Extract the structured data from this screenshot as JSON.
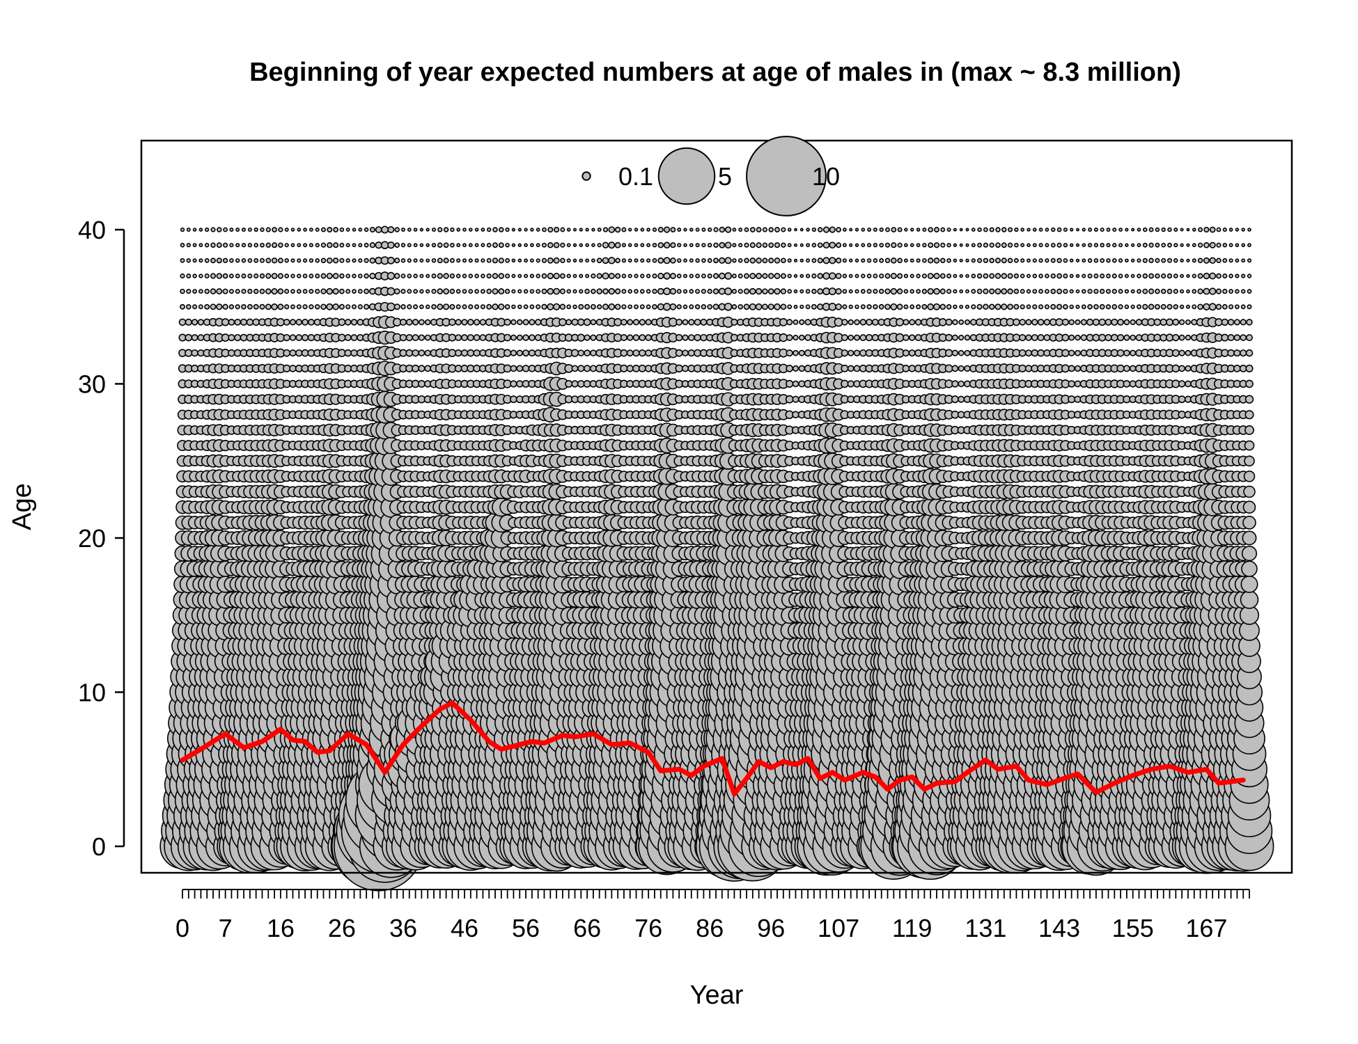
{
  "chart_data": {
    "type": "scatter",
    "subtype": "bubble",
    "title": "Beginning of year expected numbers at age of males in (max ~ 8.3 million)",
    "xlabel": "Year",
    "ylabel": "Age",
    "x_range": [
      0,
      174
    ],
    "y_range": [
      0,
      40
    ],
    "x_tick_labels": [
      "0",
      "7",
      "16",
      "26",
      "36",
      "46",
      "56",
      "66",
      "76",
      "86",
      "96",
      "107",
      "119",
      "131",
      "143",
      "155",
      "167"
    ],
    "y_ticks": [
      0,
      10,
      20,
      30,
      40
    ],
    "y_tick_labels": [
      "0",
      "10",
      "20",
      "30",
      "40"
    ],
    "legend": {
      "placement": "top-center",
      "entries": [
        {
          "label": "0.1",
          "value": 0.1
        },
        {
          "label": "5",
          "value": 5
        },
        {
          "label": "10",
          "value": 10
        }
      ]
    },
    "bubble_fill": "#bebebe",
    "bubble_stroke": "#000000",
    "mean_age_line": {
      "color": "#ff0000",
      "points": [
        [
          0,
          5.6
        ],
        [
          3,
          6.3
        ],
        [
          7,
          7.3
        ],
        [
          10,
          6.4
        ],
        [
          13,
          6.8
        ],
        [
          16,
          7.6
        ],
        [
          18,
          6.9
        ],
        [
          20,
          6.8
        ],
        [
          22,
          6.1
        ],
        [
          24,
          6.2
        ],
        [
          27,
          7.3
        ],
        [
          30,
          6.6
        ],
        [
          33,
          4.8
        ],
        [
          36,
          6.6
        ],
        [
          39,
          7.8
        ],
        [
          42,
          8.9
        ],
        [
          44,
          9.3
        ],
        [
          47,
          8.2
        ],
        [
          50,
          6.8
        ],
        [
          52,
          6.3
        ],
        [
          55,
          6.6
        ],
        [
          57,
          6.8
        ],
        [
          59,
          6.7
        ],
        [
          62,
          7.2
        ],
        [
          64,
          7.1
        ],
        [
          67,
          7.3
        ],
        [
          70,
          6.6
        ],
        [
          73,
          6.7
        ],
        [
          76,
          6.1
        ],
        [
          78,
          4.9
        ],
        [
          81,
          5.0
        ],
        [
          83,
          4.6
        ],
        [
          85,
          5.2
        ],
        [
          88,
          5.7
        ],
        [
          90,
          3.4
        ],
        [
          92,
          4.4
        ],
        [
          94,
          5.5
        ],
        [
          96,
          5.1
        ],
        [
          98,
          5.5
        ],
        [
          100,
          5.3
        ],
        [
          102,
          5.7
        ],
        [
          104,
          4.4
        ],
        [
          106,
          4.8
        ],
        [
          108,
          4.3
        ],
        [
          111,
          4.8
        ],
        [
          113,
          4.5
        ],
        [
          115,
          3.7
        ],
        [
          117,
          4.3
        ],
        [
          119,
          4.5
        ],
        [
          121,
          3.7
        ],
        [
          123,
          4.1
        ],
        [
          126,
          4.2
        ],
        [
          128,
          4.8
        ],
        [
          131,
          5.6
        ],
        [
          133,
          5.0
        ],
        [
          136,
          5.2
        ],
        [
          138,
          4.3
        ],
        [
          141,
          4.0
        ],
        [
          143,
          4.3
        ],
        [
          146,
          4.7
        ],
        [
          149,
          3.5
        ],
        [
          152,
          4.1
        ],
        [
          155,
          4.6
        ],
        [
          158,
          5.0
        ],
        [
          161,
          5.2
        ],
        [
          164,
          4.8
        ],
        [
          167,
          5.0
        ],
        [
          169,
          4.1
        ],
        [
          173,
          4.3
        ]
      ]
    }
  }
}
